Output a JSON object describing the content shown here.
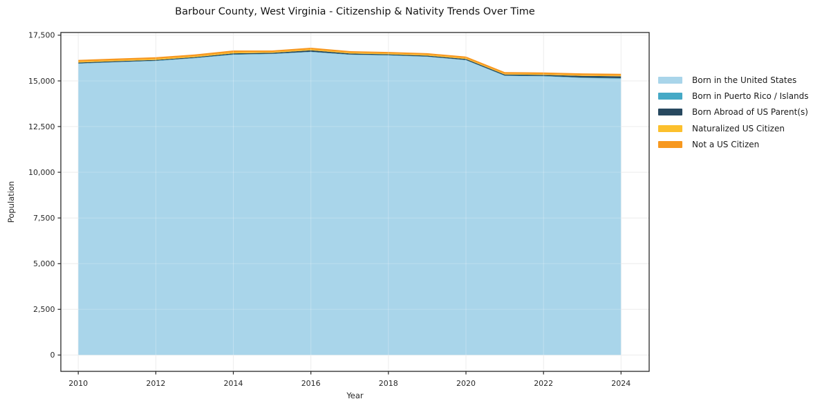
{
  "chart_data": {
    "type": "area",
    "stacked": true,
    "title": "Barbour County, West Virginia - Citizenship & Nativity Trends Over Time",
    "xlabel": "Year",
    "ylabel": "Population",
    "grid": true,
    "legend_position": "center right",
    "legend_frame": false,
    "axis_color": "#262626",
    "grid_color": "#e8e8e8",
    "background_color": "#ffffff",
    "x": [
      2010,
      2011,
      2012,
      2013,
      2014,
      2015,
      2016,
      2017,
      2018,
      2019,
      2020,
      2021,
      2022,
      2023,
      2024
    ],
    "series": [
      {
        "name": "Born in the United States",
        "color": "#a9d5ea",
        "values": [
          15940,
          16020,
          16090,
          16240,
          16430,
          16470,
          16580,
          16430,
          16390,
          16320,
          16130,
          15270,
          15250,
          15160,
          15120
        ]
      },
      {
        "name": "Born in Puerto Rico / Islands",
        "color": "#45a9c6",
        "values": [
          15,
          15,
          15,
          15,
          20,
          15,
          20,
          15,
          15,
          15,
          15,
          20,
          20,
          25,
          30
        ]
      },
      {
        "name": "Born Abroad of US Parent(s)",
        "color": "#27485f",
        "values": [
          50,
          45,
          45,
          45,
          60,
          50,
          70,
          55,
          50,
          50,
          55,
          60,
          60,
          90,
          100
        ]
      },
      {
        "name": "Naturalized US Citizen",
        "color": "#fcc02d",
        "values": [
          55,
          55,
          55,
          55,
          60,
          50,
          55,
          50,
          50,
          50,
          45,
          40,
          45,
          40,
          40
        ]
      },
      {
        "name": "Not a US Citizen",
        "color": "#f7981f",
        "values": [
          90,
          90,
          90,
          90,
          95,
          80,
          90,
          80,
          80,
          80,
          85,
          90,
          90,
          95,
          100
        ]
      }
    ],
    "x_ticks": [
      2010,
      2012,
      2014,
      2016,
      2018,
      2020,
      2022,
      2024
    ],
    "x_tick_labels": [
      "2010",
      "2012",
      "2014",
      "2016",
      "2018",
      "2020",
      "2022",
      "2024"
    ],
    "y_ticks": [
      0,
      2500,
      5000,
      7500,
      10000,
      12500,
      15000,
      17500
    ],
    "y_tick_labels": [
      "0",
      "2,500",
      "5,000",
      "7,500",
      "10,000",
      "12,500",
      "15,000",
      "17,500"
    ],
    "ylim": [
      0,
      17500
    ],
    "xlim": [
      2010,
      2024
    ]
  }
}
